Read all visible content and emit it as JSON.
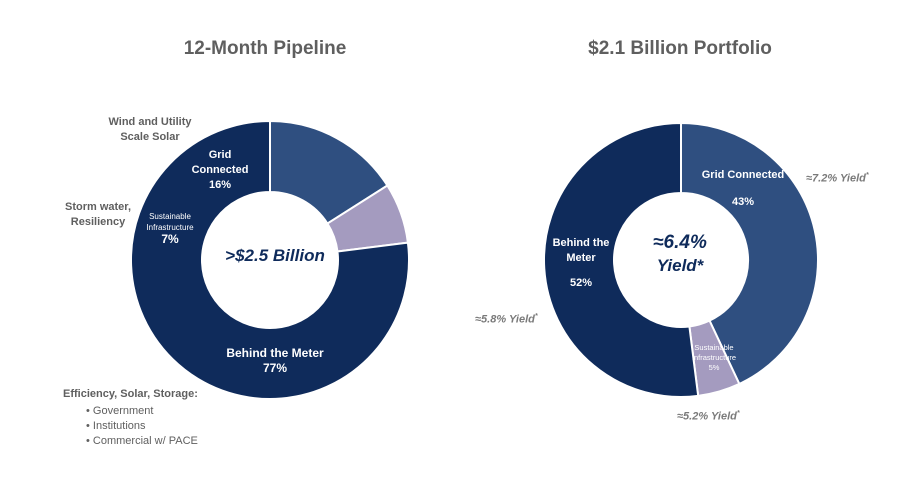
{
  "colors": {
    "dark_navy": "#0f2b5b",
    "mid_blue": "#2f4f80",
    "lavender": "#a49bbf",
    "text_gray": "#5f5f5f"
  },
  "left": {
    "title": "12-Month Pipeline",
    "center_label": ">$2.5 Billion",
    "slice_labels": {
      "grid": {
        "line1": "Grid",
        "line2": "Connected",
        "pct": "16%"
      },
      "sust": {
        "line1": "Sustainable",
        "line2": "Infrastructure",
        "pct": "7%"
      },
      "btm": {
        "line1": "Behind the Meter",
        "pct": "77%"
      }
    },
    "callouts": {
      "wind": {
        "line1": "Wind and Utility",
        "line2": "Scale Solar"
      },
      "storm": {
        "line1": "Storm water,",
        "line2": "Resiliency"
      },
      "eff": {
        "heading": "Efficiency, Solar, Storage:",
        "bullets": [
          "Government",
          "Institutions",
          "Commercial w/ PACE"
        ]
      }
    }
  },
  "right": {
    "title": "$2.1 Billion Portfolio",
    "center_line1": "≈6.4%",
    "center_line2": "Yield*",
    "slice_labels": {
      "grid": {
        "line1": "Grid Connected",
        "pct": "43%"
      },
      "sust": {
        "line1": "Sustainable",
        "line2": "Infrastructure",
        "pct": "5%"
      },
      "btm": {
        "line1": "Behind the",
        "line2": "Meter",
        "pct": "52%"
      }
    },
    "yields": {
      "grid": {
        "text": "≈7.2% Yield",
        "mark": "*"
      },
      "sust": {
        "text": "≈5.2% Yield",
        "mark": "*"
      },
      "btm": {
        "text": "≈5.8% Yield",
        "mark": "*"
      }
    }
  },
  "chart_data": [
    {
      "type": "pie",
      "title": "12-Month Pipeline",
      "center_text": ">$2.5 Billion",
      "categories": [
        "Behind the Meter",
        "Sustainable Infrastructure",
        "Grid Connected"
      ],
      "values": [
        77,
        7,
        16
      ],
      "colors": [
        "#0f2b5b",
        "#a49bbf",
        "#2f4f80"
      ],
      "annotations": [
        "Wind and Utility Scale Solar",
        "Storm water, Resiliency",
        "Efficiency, Solar, Storage: Government, Institutions, Commercial w/ PACE"
      ]
    },
    {
      "type": "pie",
      "title": "$2.1 Billion Portfolio",
      "center_text": "≈6.4% Yield*",
      "categories": [
        "Grid Connected",
        "Sustainable Infrastructure",
        "Behind the Meter"
      ],
      "values": [
        43,
        5,
        52
      ],
      "colors": [
        "#2f4f80",
        "#a49bbf",
        "#0f2b5b"
      ],
      "yields": [
        "≈7.2% Yield*",
        "≈5.2% Yield*",
        "≈5.8% Yield*"
      ]
    }
  ]
}
